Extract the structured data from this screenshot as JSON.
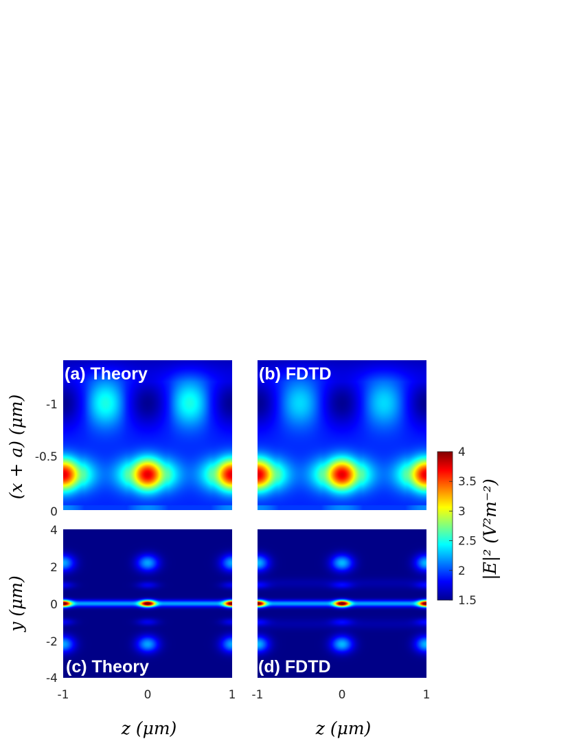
{
  "chart_data": [
    {
      "type": "heatmap",
      "title": "(a) Theory",
      "x_ticks": [
        "-1",
        "0",
        "1"
      ],
      "y_ticks": [
        "-1",
        "-0.5",
        "0"
      ],
      "ylabel": "(x + a) (μm)",
      "xlim": [
        -1,
        1
      ],
      "ylim": [
        0,
        -1.4
      ],
      "field": "xz-plane, theory"
    },
    {
      "type": "heatmap",
      "title": "(b) FDTD",
      "xlim": [
        -1,
        1
      ],
      "ylim": [
        0,
        -1.4
      ],
      "field": "xz-plane, FDTD"
    },
    {
      "type": "heatmap",
      "title": "(c) Theory",
      "x_ticks": [
        "-1",
        "0",
        "1"
      ],
      "y_ticks": [
        "4",
        "2",
        "0",
        "-2",
        "-4"
      ],
      "xlabel": "z (μm)",
      "ylabel": "y (μm)",
      "xlim": [
        -1,
        1
      ],
      "ylim": [
        -4,
        4
      ],
      "field": "yz-plane, theory"
    },
    {
      "type": "heatmap",
      "title": "(d) FDTD",
      "x_ticks": [
        "-1",
        "0",
        "1"
      ],
      "xlabel": "z (μm)",
      "xlim": [
        -1,
        1
      ],
      "ylim": [
        -4,
        4
      ],
      "field": "yz-plane, FDTD"
    }
  ],
  "colorbar": {
    "ticks": [
      "1.5",
      "2",
      "2.5",
      "3",
      "3.5",
      "4"
    ],
    "tick_values": [
      1.5,
      2,
      2.5,
      3,
      3.5,
      4
    ],
    "range": [
      1.5,
      4
    ],
    "label": "|E|² (V²m⁻²)",
    "colormap": "jet"
  },
  "labels": {
    "a_ylabel": "(x + a) (μm)",
    "c_ylabel": "y (μm)",
    "c_xlabel": "z (μm)",
    "d_xlabel": "z (μm)"
  }
}
